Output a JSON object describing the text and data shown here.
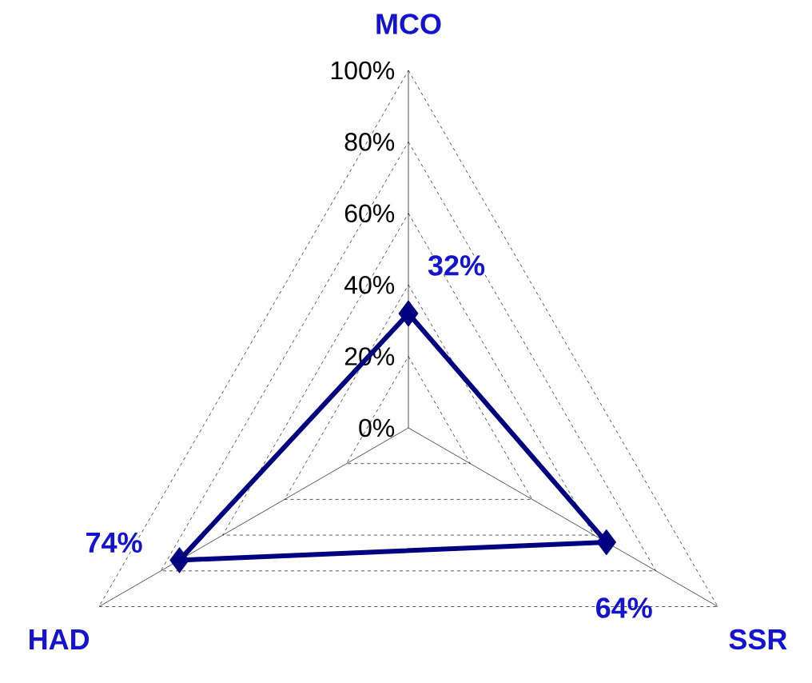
{
  "chart_data": {
    "type": "radar",
    "categories": [
      "MCO",
      "SSR",
      "HAD"
    ],
    "series": [
      {
        "color": "#000080",
        "values": [
          32,
          64,
          74
        ],
        "value_labels": [
          "32%",
          "64%",
          "74%"
        ]
      }
    ],
    "ylim": [
      0,
      100
    ],
    "yticks": [
      {
        "value": 0,
        "label": "0%"
      },
      {
        "value": 20,
        "label": "20%"
      },
      {
        "value": 40,
        "label": "40%"
      },
      {
        "value": 60,
        "label": "60%"
      },
      {
        "value": 80,
        "label": "80%"
      },
      {
        "value": 100,
        "label": "100%"
      }
    ],
    "grid": true,
    "marker": "diamond",
    "line_style": "solid"
  }
}
